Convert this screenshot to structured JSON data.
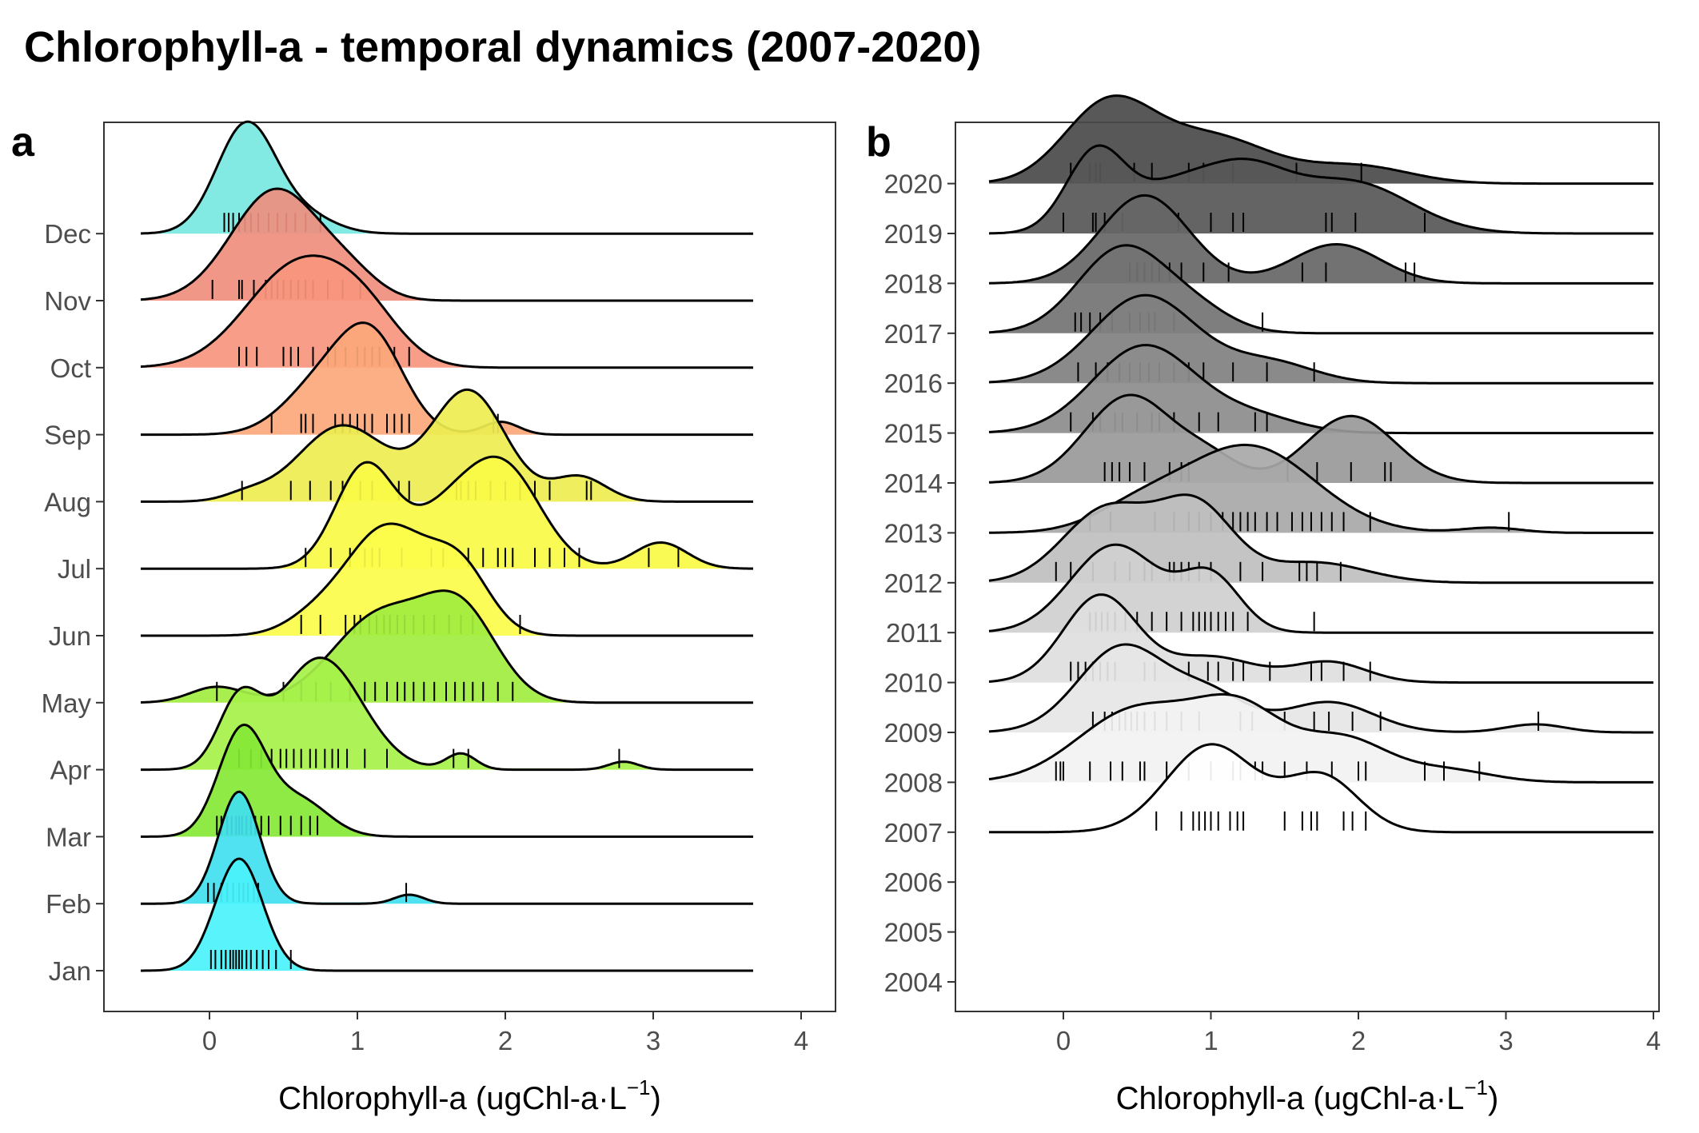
{
  "title": "Chlorophyll-a - temporal dynamics (2007-2020)",
  "chart_data": [
    {
      "type": "ridgeline",
      "panel_label": "a",
      "xlabel_main": "Chlorophyll-a (ugChl-a·L",
      "xlabel_sup": "−1",
      "xlabel_tail": ")",
      "xlim": [
        -0.7,
        4.2
      ],
      "xticks": [
        0,
        1,
        2,
        3,
        4
      ],
      "xtick_labels": [
        "0",
        "1",
        "2",
        "3",
        "4"
      ],
      "categories": [
        "Jan",
        "Feb",
        "Mar",
        "Apr",
        "May",
        "Jun",
        "Jul",
        "Aug",
        "Sep",
        "Oct",
        "Nov",
        "Dec"
      ],
      "series": [
        {
          "label": "Jan",
          "color": "#4af2fb",
          "peaks": [
            [
              0.2,
              0.16,
              1.0
            ]
          ],
          "rug": [
            0.01,
            0.04,
            0.08,
            0.11,
            0.14,
            0.16,
            0.18,
            0.2,
            0.22,
            0.25,
            0.28,
            0.32,
            0.36,
            0.4,
            0.45,
            0.55
          ]
        },
        {
          "label": "Feb",
          "color": "#42e0f0",
          "peaks": [
            [
              0.2,
              0.14,
              1.0
            ],
            [
              1.35,
              0.1,
              0.08
            ]
          ],
          "rug": [
            -0.01,
            0.03,
            0.08,
            0.12,
            0.16,
            0.2,
            0.23,
            0.26,
            0.3,
            0.33,
            1.33
          ]
        },
        {
          "label": "Mar",
          "color": "#86e836",
          "peaks": [
            [
              0.22,
              0.16,
              0.85
            ],
            [
              0.6,
              0.2,
              0.3
            ]
          ],
          "rug": [
            0.05,
            0.08,
            0.12,
            0.15,
            0.18,
            0.2,
            0.22,
            0.25,
            0.28,
            0.31,
            0.35,
            0.4,
            0.48,
            0.55,
            0.62,
            0.68,
            0.73
          ]
        },
        {
          "label": "Apr",
          "color": "#a6f24a",
          "peaks": [
            [
              0.2,
              0.14,
              0.4
            ],
            [
              0.75,
              0.28,
              0.7
            ],
            [
              1.7,
              0.1,
              0.1
            ],
            [
              2.8,
              0.1,
              0.05
            ]
          ],
          "rug": [
            0.2,
            0.28,
            0.35,
            0.42,
            0.48,
            0.52,
            0.57,
            0.62,
            0.68,
            0.72,
            0.78,
            0.83,
            0.87,
            0.93,
            1.05,
            1.2,
            1.65,
            1.75,
            2.77
          ]
        },
        {
          "label": "May",
          "color": "#a1ed3f",
          "peaks": [
            [
              0.05,
              0.18,
              0.1
            ],
            [
              1.15,
              0.32,
              0.55
            ],
            [
              1.7,
              0.25,
              0.55
            ]
          ],
          "rug": [
            0.05,
            0.5,
            0.62,
            0.72,
            0.82,
            0.95,
            1.05,
            1.12,
            1.2,
            1.27,
            1.32,
            1.38,
            1.45,
            1.52,
            1.6,
            1.66,
            1.72,
            1.78,
            1.85,
            1.95,
            2.05
          ]
        },
        {
          "label": "Jun",
          "color": "#fcfc4a",
          "peaks": [
            [
              1.2,
              0.28,
              0.8
            ],
            [
              1.7,
              0.2,
              0.45
            ],
            [
              0.7,
              0.2,
              0.1
            ]
          ],
          "rug": [
            0.62,
            0.75,
            0.92,
            0.98,
            1.02,
            1.08,
            1.13,
            1.18,
            1.22,
            1.27,
            1.32,
            1.38,
            1.45,
            1.52,
            1.62,
            1.7,
            1.78,
            2.1
          ]
        },
        {
          "label": "Jul",
          "color": "#fafa47",
          "peaks": [
            [
              1.05,
              0.2,
              0.7
            ],
            [
              1.6,
              0.25,
              0.35
            ],
            [
              2.0,
              0.25,
              0.65
            ],
            [
              3.05,
              0.18,
              0.18
            ]
          ],
          "rug": [
            0.65,
            0.82,
            0.95,
            1.05,
            1.1,
            1.15,
            1.3,
            1.5,
            1.58,
            1.75,
            1.85,
            1.95,
            2.0,
            2.05,
            2.2,
            2.3,
            2.4,
            2.5,
            2.97,
            3.17
          ]
        },
        {
          "label": "Aug",
          "color": "#eded50",
          "peaks": [
            [
              0.25,
              0.15,
              0.05
            ],
            [
              0.9,
              0.3,
              0.55
            ],
            [
              1.75,
              0.25,
              0.8
            ],
            [
              2.5,
              0.18,
              0.18
            ]
          ],
          "rug": [
            0.22,
            0.55,
            0.68,
            0.82,
            0.9,
            1.02,
            1.1,
            1.28,
            1.35,
            1.67,
            1.7,
            1.75,
            1.8,
            1.9,
            2.0,
            2.1,
            2.2,
            2.3,
            2.55,
            2.58
          ]
        },
        {
          "label": "Sep",
          "color": "#fca77a",
          "peaks": [
            [
              0.75,
              0.25,
              0.45
            ],
            [
              1.1,
              0.22,
              0.85
            ],
            [
              1.97,
              0.12,
              0.12
            ]
          ],
          "rug": [
            0.42,
            0.62,
            0.65,
            0.7,
            0.85,
            0.9,
            0.95,
            1.0,
            1.05,
            1.1,
            1.2,
            1.25,
            1.3,
            1.35,
            1.92,
            1.95
          ]
        },
        {
          "label": "Oct",
          "color": "#f7957e",
          "peaks": [
            [
              0.6,
              0.35,
              0.8
            ],
            [
              1.05,
              0.25,
              0.3
            ]
          ],
          "rug": [
            0.2,
            0.25,
            0.32,
            0.5,
            0.55,
            0.6,
            0.7,
            0.8,
            0.85,
            0.92,
            1.0,
            1.05,
            1.1,
            1.15,
            1.25,
            1.35
          ]
        },
        {
          "label": "Nov",
          "color": "#ef8e7e",
          "peaks": [
            [
              0.45,
              0.3,
              0.85
            ],
            [
              0.95,
              0.2,
              0.15
            ]
          ],
          "rug": [
            0.02,
            0.2,
            0.22,
            0.3,
            0.38,
            0.42,
            0.46,
            0.5,
            0.55,
            0.6,
            0.65,
            0.7,
            0.8,
            0.9,
            1.02
          ]
        },
        {
          "label": "Dec",
          "color": "#77e8e0",
          "peaks": [
            [
              0.25,
              0.2,
              1.0
            ],
            [
              0.65,
              0.2,
              0.15
            ]
          ],
          "rug": [
            0.1,
            0.13,
            0.16,
            0.2,
            0.24,
            0.28,
            0.33,
            0.4,
            0.46,
            0.52,
            0.58,
            0.65,
            0.75
          ]
        }
      ]
    },
    {
      "type": "ridgeline",
      "panel_label": "b",
      "xlabel_main": "Chlorophyll-a (ugChl-a·L",
      "xlabel_sup": "−1",
      "xlabel_tail": ")",
      "xlim": [
        -0.7,
        4.2
      ],
      "xticks": [
        0,
        1,
        2,
        3,
        4
      ],
      "xtick_labels": [
        "0",
        "1",
        "2",
        "3",
        "4"
      ],
      "categories": [
        "2004",
        "2005",
        "2006",
        "2007",
        "2008",
        "2009",
        "2010",
        "2011",
        "2012",
        "2013",
        "2014",
        "2015",
        "2016",
        "2017",
        "2018",
        "2019",
        "2020"
      ],
      "series": [
        {
          "label": "2007",
          "color": "#ffffff",
          "peaks": [
            [
              1.0,
              0.3,
              0.55
            ],
            [
              1.75,
              0.25,
              0.35
            ]
          ],
          "rug": [
            0.63,
            0.8,
            0.88,
            0.92,
            0.96,
            1.0,
            1.05,
            1.13,
            1.18,
            1.22,
            1.5,
            1.62,
            1.68,
            1.72,
            1.9,
            1.96,
            2.05
          ]
        },
        {
          "label": "2008",
          "color": "#f2f2f2",
          "peaks": [
            [
              0.5,
              0.4,
              0.6
            ],
            [
              1.2,
              0.3,
              0.55
            ],
            [
              1.9,
              0.3,
              0.35
            ],
            [
              2.6,
              0.3,
              0.1
            ]
          ],
          "rug": [
            -0.05,
            -0.02,
            0.0,
            0.18,
            0.32,
            0.4,
            0.52,
            0.55,
            0.7,
            0.85,
            1.0,
            1.15,
            1.2,
            1.3,
            1.35,
            1.5,
            1.65,
            1.82,
            2.0,
            2.05,
            2.45,
            2.58,
            2.82
          ]
        },
        {
          "label": "2009",
          "color": "#e6e6e6",
          "peaks": [
            [
              0.4,
              0.3,
              0.85
            ],
            [
              1.0,
              0.25,
              0.35
            ],
            [
              1.8,
              0.3,
              0.3
            ],
            [
              3.2,
              0.2,
              0.08
            ]
          ],
          "rug": [
            0.2,
            0.28,
            0.33,
            0.38,
            0.42,
            0.46,
            0.5,
            0.55,
            0.62,
            0.7,
            0.8,
            0.92,
            1.2,
            1.28,
            1.5,
            1.7,
            1.8,
            1.96,
            2.15,
            3.22
          ]
        },
        {
          "label": "2010",
          "color": "#dedede",
          "peaks": [
            [
              0.25,
              0.25,
              0.85
            ],
            [
              1.0,
              0.3,
              0.25
            ],
            [
              1.8,
              0.25,
              0.2
            ]
          ],
          "rug": [
            0.05,
            0.1,
            0.15,
            0.2,
            0.25,
            0.3,
            0.35,
            0.55,
            0.62,
            0.85,
            0.98,
            1.05,
            1.15,
            1.22,
            1.4,
            1.68,
            1.75,
            1.9,
            2.08
          ]
        },
        {
          "label": "2011",
          "color": "#cfcfcf",
          "peaks": [
            [
              0.35,
              0.3,
              0.8
            ],
            [
              1.0,
              0.2,
              0.5
            ]
          ],
          "rug": [
            0.18,
            0.22,
            0.26,
            0.3,
            0.35,
            0.42,
            0.5,
            0.6,
            0.7,
            0.8,
            0.88,
            0.92,
            0.96,
            1.0,
            1.05,
            1.1,
            1.15,
            1.25,
            1.7
          ]
        },
        {
          "label": "2012",
          "color": "#bfbfbf",
          "peaks": [
            [
              0.3,
              0.3,
              0.55
            ],
            [
              0.9,
              0.25,
              0.55
            ],
            [
              1.7,
              0.35,
              0.15
            ]
          ],
          "rug": [
            -0.05,
            0.05,
            0.2,
            0.35,
            0.45,
            0.55,
            0.6,
            0.72,
            0.75,
            0.8,
            0.85,
            0.92,
            1.0,
            1.2,
            1.35,
            1.6,
            1.65,
            1.72,
            1.88
          ]
        },
        {
          "label": "2013",
          "color": "#a8a8a8",
          "peaks": [
            [
              1.25,
              0.45,
              0.85
            ],
            [
              0.5,
              0.3,
              0.2
            ],
            [
              2.9,
              0.2,
              0.05
            ]
          ],
          "rug": [
            0.18,
            0.32,
            0.62,
            0.75,
            0.85,
            0.92,
            1.0,
            1.08,
            1.15,
            1.2,
            1.25,
            1.3,
            1.38,
            1.45,
            1.55,
            1.62,
            1.68,
            1.75,
            1.82,
            1.9,
            2.08,
            3.02
          ]
        },
        {
          "label": "2014",
          "color": "#999999",
          "peaks": [
            [
              0.45,
              0.3,
              0.85
            ],
            [
              1.0,
              0.2,
              0.2
            ],
            [
              1.95,
              0.3,
              0.65
            ]
          ],
          "rug": [
            0.28,
            0.33,
            0.38,
            0.45,
            0.55,
            0.72,
            0.8,
            0.85,
            1.52,
            1.72,
            1.95,
            2.18,
            2.22
          ]
        },
        {
          "label": "2015",
          "color": "#8c8c8c",
          "peaks": [
            [
              0.55,
              0.35,
              0.85
            ],
            [
              1.3,
              0.3,
              0.15
            ]
          ],
          "rug": [
            0.05,
            0.2,
            0.25,
            0.35,
            0.4,
            0.5,
            0.6,
            0.65,
            0.75,
            0.92,
            1.05,
            1.3,
            1.38
          ]
        },
        {
          "label": "2016",
          "color": "#808080",
          "peaks": [
            [
              0.55,
              0.35,
              0.85
            ],
            [
              1.4,
              0.3,
              0.2
            ]
          ],
          "rug": [
            0.1,
            0.22,
            0.3,
            0.38,
            0.45,
            0.52,
            0.58,
            0.65,
            0.75,
            0.85,
            0.95,
            1.15,
            1.38,
            1.7
          ]
        },
        {
          "label": "2017",
          "color": "#737373",
          "peaks": [
            [
              0.4,
              0.3,
              0.85
            ],
            [
              0.9,
              0.25,
              0.2
            ]
          ],
          "rug": [
            0.08,
            0.12,
            0.18,
            0.25,
            0.33,
            0.45,
            0.52,
            0.58,
            0.62,
            0.75,
            1.35
          ]
        },
        {
          "label": "2018",
          "color": "#666666",
          "peaks": [
            [
              0.55,
              0.3,
              0.9
            ],
            [
              1.85,
              0.3,
              0.4
            ]
          ],
          "rug": [
            0.45,
            0.5,
            0.55,
            0.6,
            0.65,
            0.72,
            0.8,
            0.95,
            1.12,
            1.62,
            1.78,
            2.32,
            2.38
          ]
        },
        {
          "label": "2019",
          "color": "#575757",
          "peaks": [
            [
              0.22,
              0.2,
              0.8
            ],
            [
              0.7,
              0.25,
              0.35
            ],
            [
              1.2,
              0.3,
              0.6
            ],
            [
              1.95,
              0.4,
              0.5
            ]
          ],
          "rug": [
            0.0,
            0.2,
            0.22,
            0.28,
            0.4,
            0.78,
            1.0,
            1.15,
            1.22,
            1.78,
            1.82,
            1.98,
            2.45
          ]
        },
        {
          "label": "2020",
          "color": "#4a4a4a",
          "peaks": [
            [
              0.3,
              0.3,
              0.9
            ],
            [
              1.0,
              0.4,
              0.55
            ],
            [
              2.0,
              0.35,
              0.2
            ]
          ],
          "rug": [
            0.05,
            0.18,
            0.22,
            0.25,
            0.48,
            0.6,
            0.85,
            0.95,
            1.15,
            1.58,
            2.02
          ]
        }
      ]
    }
  ]
}
